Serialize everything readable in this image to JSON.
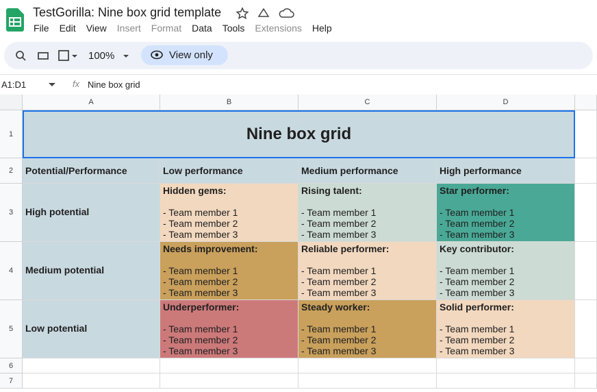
{
  "app": {
    "title": "TestGorilla: Nine box grid template",
    "menu": [
      "File",
      "Edit",
      "View",
      "Insert",
      "Format",
      "Data",
      "Tools",
      "Extensions",
      "Help"
    ],
    "zoom": "100%",
    "view_only": "View only",
    "cell_ref": "A1:D1",
    "formula": "Nine box grid"
  },
  "columns": [
    "A",
    "B",
    "C",
    "D"
  ],
  "row_numbers": [
    "1",
    "2",
    "3",
    "4",
    "5",
    "6",
    "7"
  ],
  "sheet": {
    "title": "Nine box grid",
    "header": [
      "Potential/Performance",
      "Low performance",
      "Medium performance",
      "High performance"
    ],
    "rows": [
      {
        "label": "High potential",
        "cells": [
          {
            "title": "Hidden gems:",
            "members": [
              "- Team member 1",
              "- Team member 2",
              "- Team member 3"
            ]
          },
          {
            "title": "Rising talent:",
            "members": [
              "- Team member 1",
              "- Team member 2",
              "- Team member 3"
            ]
          },
          {
            "title": "Star performer:",
            "members": [
              "- Team member 1",
              "- Team member 2",
              "- Team member 3"
            ]
          }
        ]
      },
      {
        "label": "Medium potential",
        "cells": [
          {
            "title": "Needs improvement:",
            "members": [
              "- Team member 1",
              "- Team member 2",
              "- Team member 3"
            ]
          },
          {
            "title": "Reliable performer:",
            "members": [
              "- Team member 1",
              "- Team member 2",
              "- Team member 3"
            ]
          },
          {
            "title": "Key contributor:",
            "members": [
              "- Team member 1",
              "- Team member 2",
              "- Team member 3"
            ]
          }
        ]
      },
      {
        "label": "Low potential",
        "cells": [
          {
            "title": "Underperformer:",
            "members": [
              "- Team member 1",
              "- Team member 2",
              "- Team member 3"
            ]
          },
          {
            "title": "Steady worker:",
            "members": [
              "- Team member 1",
              "- Team member 2",
              "- Team member 3"
            ]
          },
          {
            "title": "Solid performer:",
            "members": [
              "- Team member 1",
              "- Team member 2",
              "- Team member 3"
            ]
          }
        ]
      }
    ]
  }
}
